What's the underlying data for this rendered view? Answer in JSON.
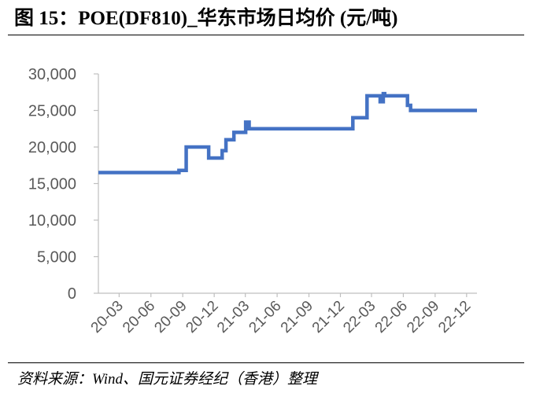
{
  "source": "资料来源：Wind、国元证券经纪（香港）整理",
  "chart_data": {
    "type": "line",
    "title": "图 15：POE(DF810)_华东市场日均价 (元/吨)",
    "x_scale": "date",
    "xlim": [
      "2020-01-01",
      "2022-12-31"
    ],
    "ylim": [
      0,
      30000
    ],
    "ytick_labels": [
      "0",
      "5,000",
      "10,000",
      "15,000",
      "20,000",
      "25,000",
      "30,000"
    ],
    "xtick_labels": [
      "20-03",
      "20-06",
      "20-09",
      "20-12",
      "21-03",
      "21-06",
      "21-09",
      "21-12",
      "22-03",
      "22-06",
      "22-09",
      "22-12"
    ],
    "grid": false,
    "legend": "none",
    "axis_color": "#BFBFBF",
    "tick_label_color": "#595959",
    "series": [
      {
        "color": "#4472C4",
        "points": [
          [
            "2020-01-01",
            16500
          ],
          [
            "2020-08-21",
            16500
          ],
          [
            "2020-08-21",
            16800
          ],
          [
            "2020-09-11",
            16800
          ],
          [
            "2020-09-11",
            20000
          ],
          [
            "2020-11-15",
            20000
          ],
          [
            "2020-11-15",
            18500
          ],
          [
            "2020-12-24",
            18500
          ],
          [
            "2020-12-24",
            19500
          ],
          [
            "2021-01-04",
            19500
          ],
          [
            "2021-01-04",
            21000
          ],
          [
            "2021-01-27",
            21000
          ],
          [
            "2021-01-27",
            22000
          ],
          [
            "2021-03-02",
            22000
          ],
          [
            "2021-03-02",
            23400
          ],
          [
            "2021-03-12",
            23400
          ],
          [
            "2021-03-12",
            22500
          ],
          [
            "2022-01-06",
            22500
          ],
          [
            "2022-01-06",
            24000
          ],
          [
            "2022-02-16",
            24000
          ],
          [
            "2022-02-16",
            27000
          ],
          [
            "2022-03-26",
            27000
          ],
          [
            "2022-03-26",
            26200
          ],
          [
            "2022-04-04",
            26200
          ],
          [
            "2022-04-04",
            27300
          ],
          [
            "2022-04-08",
            27300
          ],
          [
            "2022-04-08",
            27000
          ],
          [
            "2022-06-13",
            27000
          ],
          [
            "2022-06-13",
            25700
          ],
          [
            "2022-06-22",
            25700
          ],
          [
            "2022-06-22",
            25000
          ],
          [
            "2022-12-31",
            25000
          ]
        ]
      }
    ]
  }
}
